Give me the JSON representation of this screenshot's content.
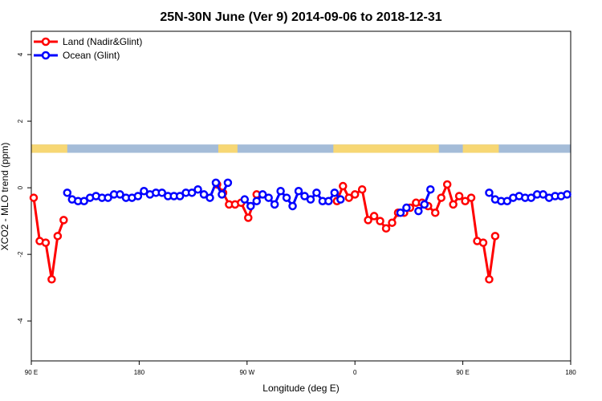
{
  "chart_data": {
    "type": "line",
    "title": "25N-30N June (Ver 9)   2014-09-06 to 2018-12-31",
    "xlabel": "Longitude (deg E)",
    "ylabel": "XCO2 - MLO trend (ppm)",
    "xlim": [
      90,
      540
    ],
    "ylim": [
      -5.2,
      4.7
    ],
    "x_ticks": [
      {
        "value": 90,
        "label": "90 E"
      },
      {
        "value": 180,
        "label": "180"
      },
      {
        "value": 270,
        "label": "90 W"
      },
      {
        "value": 360,
        "label": "0"
      },
      {
        "value": 450,
        "label": "90 E"
      },
      {
        "value": 540,
        "label": "180"
      }
    ],
    "y_ticks": [
      {
        "value": -4,
        "label": "-4"
      },
      {
        "value": -2,
        "label": "-2"
      },
      {
        "value": 0,
        "label": "0"
      },
      {
        "value": 2,
        "label": "2"
      },
      {
        "value": 4,
        "label": "4"
      }
    ],
    "legend_position": "top-left",
    "surface_band": {
      "y_range": [
        1.05,
        1.3
      ],
      "ocean_color": "#a4bcd8",
      "land_color": "#f7d774",
      "land_ranges": [
        [
          90,
          120
        ],
        [
          246,
          262
        ],
        [
          342,
          430
        ],
        [
          450,
          480
        ]
      ]
    },
    "series": [
      {
        "name": "Land (Nadir&Glint)",
        "color": "#ff0000",
        "x": [
          92,
          97,
          102,
          107,
          112,
          117,
          245,
          250,
          255,
          260,
          265,
          271,
          278,
          345,
          350,
          355,
          360,
          366,
          371,
          376,
          381,
          386,
          391,
          396,
          401,
          406,
          411,
          416,
          421,
          427,
          432,
          437,
          442,
          447,
          452,
          457,
          462,
          467,
          472,
          477
        ],
        "y": [
          -0.3,
          -1.6,
          -1.65,
          -2.75,
          -1.45,
          -0.97,
          0.1,
          -0.15,
          -0.5,
          -0.5,
          -0.45,
          -0.9,
          -0.2,
          -0.4,
          0.05,
          -0.3,
          -0.2,
          -0.05,
          -0.97,
          -0.85,
          -1.0,
          -1.22,
          -1.05,
          -0.75,
          -0.75,
          -0.6,
          -0.45,
          -0.45,
          -0.55,
          -0.75,
          -0.3,
          0.1,
          -0.5,
          -0.25,
          -0.4,
          -0.3,
          -1.6,
          -1.65,
          -2.75,
          -1.45
        ]
      },
      {
        "name": "Ocean (Glint)",
        "color": "#0000ff",
        "x": [
          120,
          124,
          129,
          134,
          139,
          144,
          149,
          154,
          159,
          164,
          169,
          174,
          179,
          184,
          189,
          194,
          199,
          204,
          209,
          214,
          219,
          224,
          229,
          234,
          239,
          244,
          249,
          254,
          268,
          273,
          278,
          283,
          288,
          293,
          298,
          303,
          308,
          313,
          318,
          323,
          328,
          333,
          338,
          343,
          348,
          398,
          403,
          413,
          418,
          423,
          472,
          477,
          482,
          487,
          492,
          497,
          502,
          507,
          512,
          517,
          522,
          527,
          532,
          537
        ],
        "y": [
          -0.15,
          -0.35,
          -0.4,
          -0.4,
          -0.3,
          -0.25,
          -0.3,
          -0.3,
          -0.2,
          -0.2,
          -0.3,
          -0.3,
          -0.25,
          -0.1,
          -0.2,
          -0.15,
          -0.15,
          -0.25,
          -0.25,
          -0.25,
          -0.15,
          -0.15,
          -0.05,
          -0.2,
          -0.3,
          0.15,
          -0.2,
          0.15,
          -0.35,
          -0.55,
          -0.4,
          -0.2,
          -0.3,
          -0.5,
          -0.1,
          -0.3,
          -0.55,
          -0.1,
          -0.25,
          -0.35,
          -0.15,
          -0.4,
          -0.4,
          -0.15,
          -0.35,
          -0.75,
          -0.6,
          -0.7,
          -0.5,
          -0.05,
          -0.15,
          -0.35,
          -0.4,
          -0.4,
          -0.3,
          -0.25,
          -0.3,
          -0.3,
          -0.2,
          -0.2,
          -0.3,
          -0.25,
          -0.25,
          -0.2
        ]
      }
    ]
  }
}
